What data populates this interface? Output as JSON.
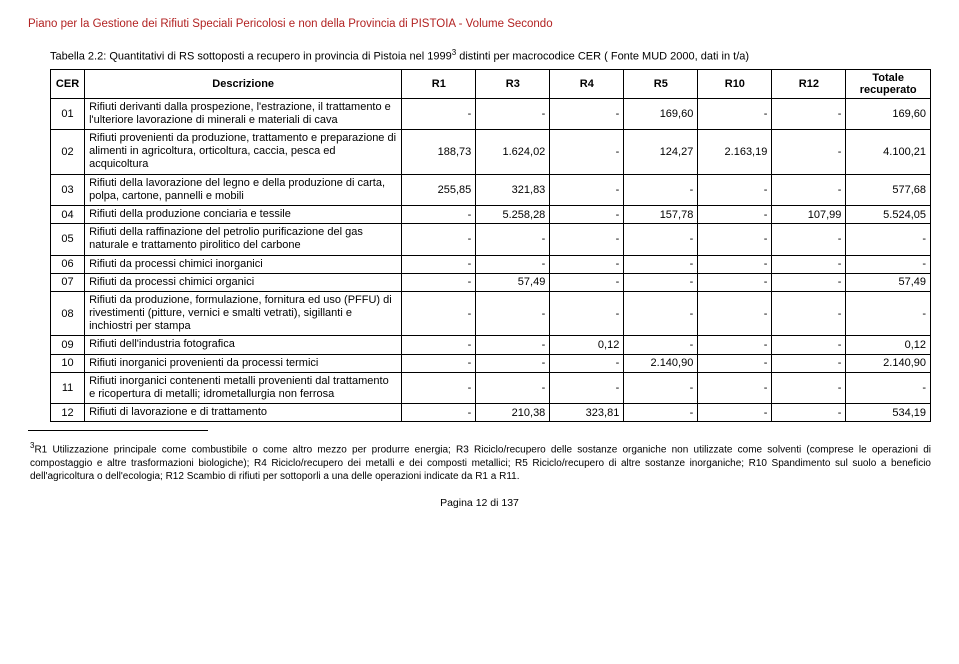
{
  "header": "Piano per la Gestione dei Rifiuti Speciali Pericolosi e non della Provincia di PISTOIA - Volume Secondo",
  "table_title_prefix": "Tabella 2.2: Quantitativi di RS sottoposti a recupero in provincia di Pistoia nel 1999",
  "table_title_suffix": " distinti per macrocodice CER ( Fonte MUD 2000, dati in t/a)",
  "columns": {
    "cer": "CER",
    "desc": "Descrizione",
    "r1": "R1",
    "r3": "R3",
    "r4": "R4",
    "r5": "R5",
    "r10": "R10",
    "r12": "R12",
    "tot": "Totale recuperato"
  },
  "rows": [
    {
      "cer": "01",
      "desc": "Rifiuti derivanti dalla prospezione, l'estrazione, il trattamento e l'ulteriore lavorazione di minerali e materiali di cava",
      "r1": "-",
      "r3": "-",
      "r4": "-",
      "r5": "169,60",
      "r10": "-",
      "r12": "-",
      "tot": "169,60"
    },
    {
      "cer": "02",
      "desc": "Rifiuti provenienti da produzione, trattamento e preparazione di alimenti in agricoltura, orticoltura, caccia, pesca ed acquicoltura",
      "r1": "188,73",
      "r3": "1.624,02",
      "r4": "-",
      "r5": "124,27",
      "r10": "2.163,19",
      "r12": "-",
      "tot": "4.100,21"
    },
    {
      "cer": "03",
      "desc": "Rifiuti della lavorazione del legno e della produzione di carta, polpa, cartone, pannelli e mobili",
      "r1": "255,85",
      "r3": "321,83",
      "r4": "-",
      "r5": "-",
      "r10": "-",
      "r12": "-",
      "tot": "577,68"
    },
    {
      "cer": "04",
      "desc": "Rifiuti della produzione conciaria e tessile",
      "r1": "-",
      "r3": "5.258,28",
      "r4": "-",
      "r5": "157,78",
      "r10": "-",
      "r12": "107,99",
      "tot": "5.524,05"
    },
    {
      "cer": "05",
      "desc": "Rifiuti della raffinazione del petrolio purificazione del gas naturale e trattamento pirolitico del carbone",
      "r1": "-",
      "r3": "-",
      "r4": "-",
      "r5": "-",
      "r10": "-",
      "r12": "-",
      "tot": "-"
    },
    {
      "cer": "06",
      "desc": "Rifiuti da processi chimici inorganici",
      "r1": "-",
      "r3": "-",
      "r4": "-",
      "r5": "-",
      "r10": "-",
      "r12": "-",
      "tot": "-"
    },
    {
      "cer": "07",
      "desc": "Rifiuti da processi chimici organici",
      "r1": "-",
      "r3": "57,49",
      "r4": "-",
      "r5": "-",
      "r10": "-",
      "r12": "-",
      "tot": "57,49"
    },
    {
      "cer": "08",
      "desc": "Rifiuti da produzione, formulazione, fornitura ed uso (PFFU) di rivestimenti (pitture, vernici e smalti vetrati), sigillanti e inchiostri per stampa",
      "r1": "-",
      "r3": "-",
      "r4": "-",
      "r5": "-",
      "r10": "-",
      "r12": "-",
      "tot": "-"
    },
    {
      "cer": "09",
      "desc": "Rifiuti dell'industria fotografica",
      "r1": "-",
      "r3": "-",
      "r4": "0,12",
      "r5": "-",
      "r10": "-",
      "r12": "-",
      "tot": "0,12"
    },
    {
      "cer": "10",
      "desc": "Rifiuti inorganici provenienti da processi termici",
      "r1": "-",
      "r3": "-",
      "r4": "-",
      "r5": "2.140,90",
      "r10": "-",
      "r12": "-",
      "tot": "2.140,90"
    },
    {
      "cer": "11",
      "desc": "Rifiuti inorganici contenenti metalli provenienti dal trattamento e ricopertura di metalli; idrometallurgia non ferrosa",
      "r1": "-",
      "r3": "-",
      "r4": "-",
      "r5": "-",
      "r10": "-",
      "r12": "-",
      "tot": "-"
    },
    {
      "cer": "12",
      "desc": "Rifiuti di lavorazione e di trattamento",
      "r1": "-",
      "r3": "210,38",
      "r4": "323,81",
      "r5": "-",
      "r10": "-",
      "r12": "-",
      "tot": "534,19"
    }
  ],
  "footnote_marker": "3",
  "footnote": "R1 Utilizzazione principale come combustibile o come altro mezzo per produrre energia; R3 Riciclo/recupero delle sostanze organiche non utilizzate come solventi (comprese le operazioni di compostaggio e altre trasformazioni biologiche); R4 Riciclo/recupero dei metalli e dei composti metallici; R5 Riciclo/recupero di altre sostanze inorganiche; R10 Spandimento sul suolo a beneficio dell'agricoltura o dell'ecologia; R12 Scambio di rifiuti per sottoporli a una delle operazioni indicate da R1 a R11.",
  "page": "Pagina 12 di 137",
  "colors": {
    "header": "#b22222",
    "border": "#000000",
    "text": "#000000",
    "background": "#ffffff"
  }
}
